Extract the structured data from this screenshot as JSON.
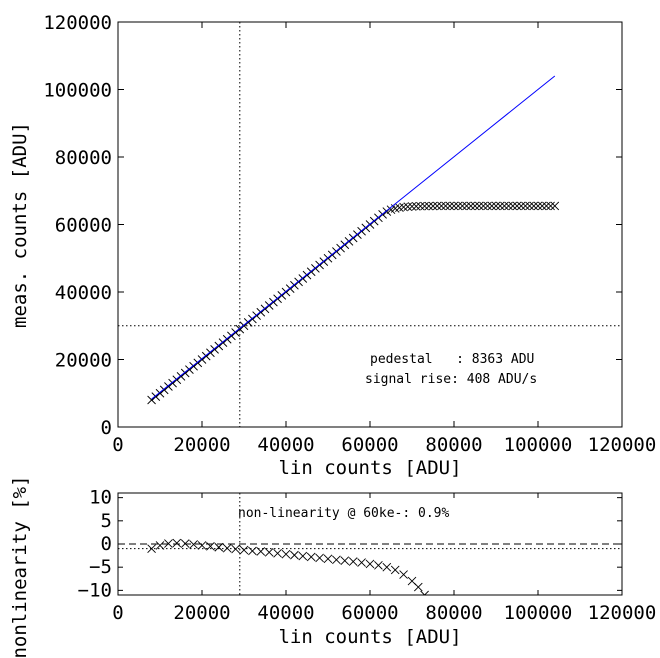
{
  "chart_data": [
    {
      "type": "scatter",
      "xlabel": "lin counts [ADU]",
      "ylabel": "meas. counts [ADU]",
      "xlim": [
        0,
        120000
      ],
      "ylim": [
        0,
        120000
      ],
      "xticks": [
        0,
        20000,
        40000,
        60000,
        80000,
        100000,
        120000
      ],
      "yticks": [
        0,
        20000,
        40000,
        60000,
        80000,
        100000,
        120000
      ],
      "xtick_labels": [
        "0",
        "20000",
        "40000",
        "60000",
        "80000",
        "100000",
        "120000"
      ],
      "ytick_labels": [
        "0",
        "20000",
        "40000",
        "60000",
        "80000",
        "100000",
        "120000"
      ],
      "grid": false,
      "ref_vline_x": 29000,
      "ref_hline_y": 30000,
      "fit_line": {
        "color": "#0000ff",
        "x": [
          8000,
          104000
        ],
        "y": [
          8300,
          104000
        ]
      },
      "measured": {
        "marker": "x",
        "color": "#000000",
        "x_start": 8000,
        "x_end": 104000,
        "x_step": 1000,
        "linear_until": 63000,
        "saturation": 65500,
        "pedestal": 8363
      },
      "annotations": {
        "pedestal": "pedestal   : 8363 ADU",
        "signal_rise": "signal rise: 408 ADU/s"
      }
    },
    {
      "type": "scatter",
      "xlabel": "lin counts [ADU]",
      "ylabel": "nonlinearity [%]",
      "xlim": [
        0,
        120000
      ],
      "ylim": [
        -11,
        11
      ],
      "xticks": [
        0,
        20000,
        40000,
        60000,
        80000,
        100000,
        120000
      ],
      "yticks": [
        10,
        5,
        0,
        -5,
        -10
      ],
      "xtick_labels": [
        "0",
        "20000",
        "40000",
        "60000",
        "80000",
        "100000",
        "120000"
      ],
      "ytick_labels": [
        "10",
        "5",
        "0",
        "−5",
        "−10"
      ],
      "grid": false,
      "ref_vline_x": 29000,
      "ref_hline_dashed_y": 0,
      "ref_hline_dotted_y": -1,
      "x": [
        8000,
        10000,
        12000,
        14000,
        16000,
        18000,
        20000,
        22000,
        24000,
        26000,
        28000,
        30000,
        32000,
        34000,
        36000,
        38000,
        40000,
        42000,
        44000,
        46000,
        48000,
        50000,
        52000,
        54000,
        56000,
        58000,
        60000,
        62000,
        64000,
        66000,
        68000,
        70000,
        71500,
        73000
      ],
      "y": [
        -1.0,
        -0.3,
        0.1,
        0.2,
        0.1,
        -0.1,
        -0.3,
        -0.5,
        -0.7,
        -0.9,
        -1.1,
        -1.3,
        -1.5,
        -1.6,
        -1.8,
        -2.0,
        -2.2,
        -2.4,
        -2.6,
        -2.8,
        -3.0,
        -3.2,
        -3.4,
        -3.6,
        -3.8,
        -4.0,
        -4.3,
        -4.6,
        -5.0,
        -5.6,
        -6.6,
        -8.0,
        -9.3,
        -11.0
      ],
      "annotation": "non-linearity @ 60ke-: 0.9%"
    }
  ]
}
